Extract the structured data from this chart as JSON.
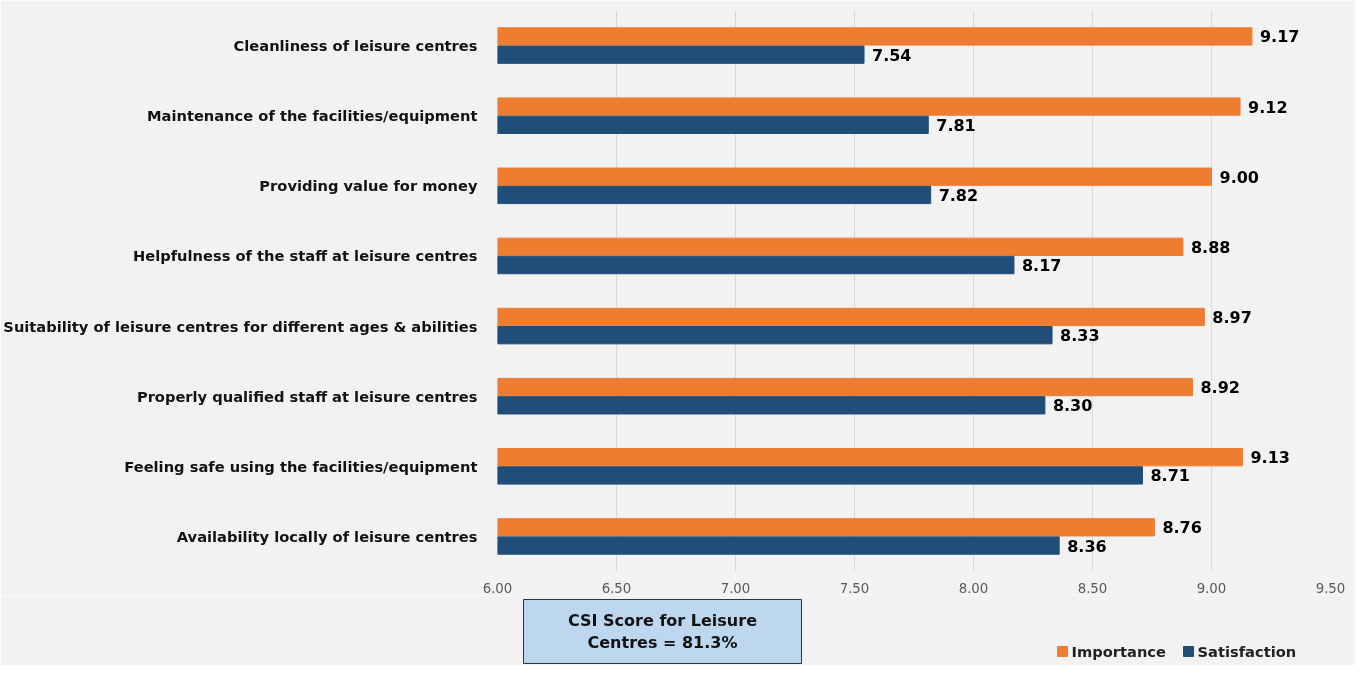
{
  "chart_data": {
    "type": "bar",
    "orientation": "horizontal",
    "categories": [
      "Cleanliness of leisure centres",
      "Maintenance of the facilities/equipment",
      "Providing value for money",
      "Helpfulness of the staff at leisure centres",
      "Suitability of leisure centres for different ages & abilities",
      "Properly qualified staff at leisure centres",
      "Feeling safe using the facilities/equipment",
      "Availability locally of leisure centres"
    ],
    "series": [
      {
        "name": "Importance",
        "color": "#ed7d31",
        "values": [
          9.17,
          9.12,
          9.0,
          8.88,
          8.97,
          8.92,
          9.13,
          8.76
        ],
        "value_labels": [
          "9.17",
          "9.12",
          "9.00",
          "8.88",
          "8.97",
          "8.92",
          "9.13",
          "8.76"
        ]
      },
      {
        "name": "Satisfaction",
        "color": "#1f4e79",
        "values": [
          7.54,
          7.81,
          7.82,
          8.17,
          8.33,
          8.3,
          8.71,
          8.36
        ],
        "value_labels": [
          "7.54",
          "7.81",
          "7.82",
          "8.17",
          "8.33",
          "8.30",
          "8.71",
          "8.36"
        ]
      }
    ],
    "xlim": [
      6,
      9.5
    ],
    "xticks": [
      {
        "value": 6,
        "label": "6.00"
      },
      {
        "value": 6.5,
        "label": "6.50"
      },
      {
        "value": 7,
        "label": "7.00"
      },
      {
        "value": 7.5,
        "label": "7.50"
      },
      {
        "value": 8,
        "label": "8.00"
      },
      {
        "value": 8.5,
        "label": "8.50"
      },
      {
        "value": 9,
        "label": "9.00"
      },
      {
        "value": 9.5,
        "label": "9.50"
      }
    ],
    "grid": "x",
    "legend": "bottom",
    "annotations": [
      "CSI Score for Leisure Centres = 81.3%"
    ]
  }
}
